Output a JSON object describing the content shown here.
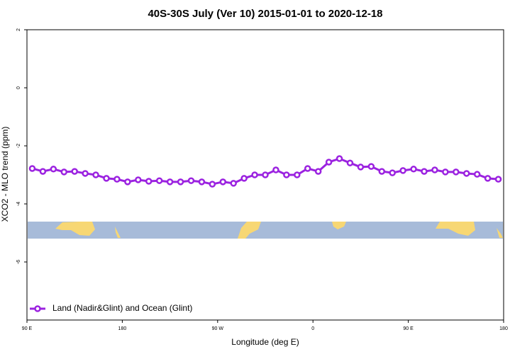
{
  "chart_data": {
    "type": "line",
    "title": "40S-30S July (Ver 10)   2015-01-01 to 2020-12-18",
    "x_label": "Longitude (deg E)",
    "y_label": "XCO2 - MLO trend (ppm)",
    "x": [
      95,
      105,
      115,
      125,
      135,
      145,
      155,
      165,
      175,
      185,
      195,
      205,
      215,
      225,
      235,
      245,
      255,
      265,
      275,
      285,
      295,
      305,
      315,
      325,
      335,
      345,
      355,
      365,
      375,
      385,
      395,
      405,
      415,
      425,
      435,
      445,
      455,
      465,
      475,
      485,
      495,
      505,
      515,
      525,
      535
    ],
    "series": [
      {
        "name": "Land (Nadir&Glint) and Ocean (Glint)",
        "color": "#9b22e0",
        "values": [
          -2.78,
          -2.88,
          -2.8,
          -2.9,
          -2.88,
          -2.95,
          -3.0,
          -3.12,
          -3.15,
          -3.24,
          -3.17,
          -3.22,
          -3.2,
          -3.24,
          -3.24,
          -3.2,
          -3.24,
          -3.32,
          -3.24,
          -3.29,
          -3.12,
          -3.0,
          -3.0,
          -2.83,
          -3.0,
          -3.0,
          -2.78,
          -2.88,
          -2.56,
          -2.44,
          -2.59,
          -2.73,
          -2.71,
          -2.88,
          -2.93,
          -2.85,
          -2.8,
          -2.88,
          -2.83,
          -2.9,
          -2.9,
          -2.95,
          -2.98,
          -3.12,
          -3.15
        ]
      }
    ],
    "xlim": [
      90,
      540
    ],
    "xticks": [
      {
        "value": 90,
        "label": "90 E"
      },
      {
        "value": 180,
        "label": "180"
      },
      {
        "value": 270,
        "label": "90 W"
      },
      {
        "value": 360,
        "label": "0"
      },
      {
        "value": 450,
        "label": "90 E"
      },
      {
        "value": 540,
        "label": "180"
      }
    ],
    "ylim": [
      -8,
      2
    ],
    "yticks": [
      2,
      0,
      -2,
      -4,
      -6
    ],
    "legend": "bottom-left"
  }
}
